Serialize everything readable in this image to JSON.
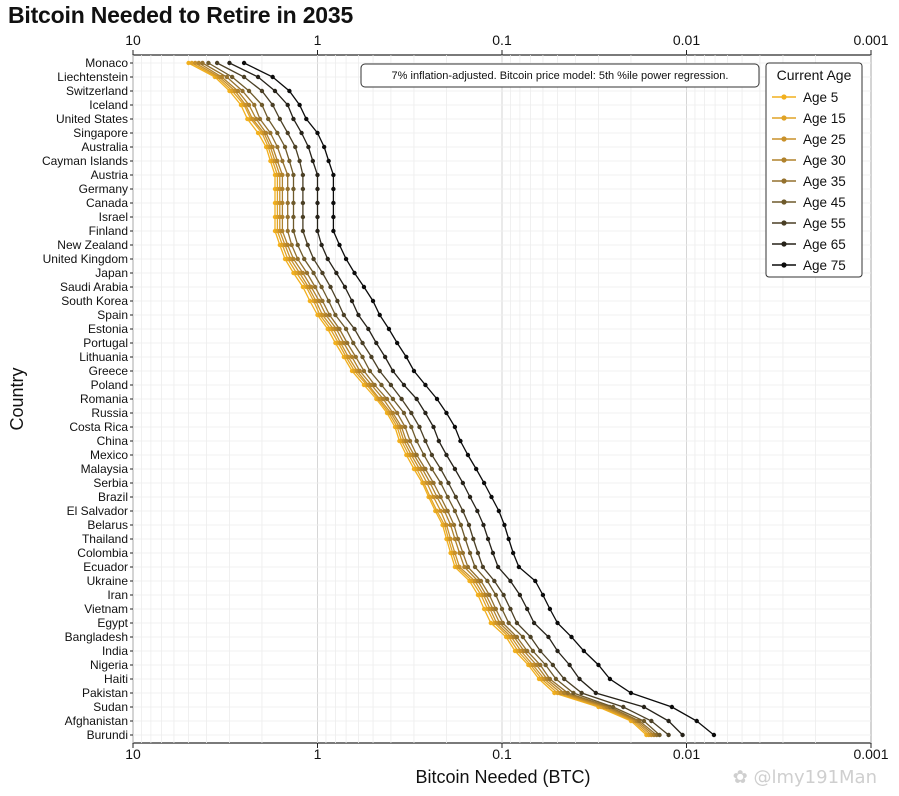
{
  "chart_data": {
    "type": "line",
    "title": "Bitcoin Needed to Retire in 2035",
    "xlabel": "Bitcoin Needed (BTC)",
    "ylabel": "Country",
    "x_scale": "log",
    "x_reversed": true,
    "xlim": [
      10,
      0.001
    ],
    "x_ticks": [
      10,
      1,
      0.1,
      0.01,
      0.001
    ],
    "x_tick_labels": [
      "10",
      "1",
      "0.1",
      "0.01",
      "0.001"
    ],
    "grid": true,
    "legend_title": "Current Age",
    "legend_position": "top-right",
    "annotation": "7% inflation-adjusted. Bitcoin price model: 5th %ile power regression.",
    "categories": [
      "Monaco",
      "Liechtenstein",
      "Switzerland",
      "Iceland",
      "United States",
      "Singapore",
      "Australia",
      "Cayman Islands",
      "Austria",
      "Germany",
      "Canada",
      "Israel",
      "Finland",
      "New Zealand",
      "United Kingdom",
      "Japan",
      "Saudi Arabia",
      "South Korea",
      "Spain",
      "Estonia",
      "Portugal",
      "Lithuania",
      "Greece",
      "Poland",
      "Romania",
      "Russia",
      "Costa Rica",
      "China",
      "Mexico",
      "Malaysia",
      "Serbia",
      "Brazil",
      "El Salvador",
      "Belarus",
      "Thailand",
      "Colombia",
      "Ecuador",
      "Ukraine",
      "Iran",
      "Vietnam",
      "Egypt",
      "Bangladesh",
      "India",
      "Nigeria",
      "Haiti",
      "Pakistan",
      "Sudan",
      "Afghanistan",
      "Burundi"
    ],
    "series": [
      {
        "name": "Age 5",
        "color": "#f2b01e",
        "values": [
          5.0,
          3.6,
          3.0,
          2.6,
          2.4,
          2.1,
          1.9,
          1.8,
          1.7,
          1.7,
          1.7,
          1.7,
          1.7,
          1.6,
          1.5,
          1.35,
          1.2,
          1.1,
          1.0,
          0.88,
          0.8,
          0.72,
          0.65,
          0.56,
          0.48,
          0.42,
          0.38,
          0.36,
          0.33,
          0.3,
          0.27,
          0.25,
          0.23,
          0.21,
          0.2,
          0.19,
          0.18,
          0.15,
          0.135,
          0.125,
          0.115,
          0.095,
          0.085,
          0.072,
          0.063,
          0.052,
          0.03,
          0.02,
          0.0165
        ]
      },
      {
        "name": "Age 15",
        "color": "#e0a326",
        "values": [
          4.8,
          3.5,
          2.9,
          2.5,
          2.3,
          2.0,
          1.85,
          1.75,
          1.65,
          1.65,
          1.65,
          1.65,
          1.65,
          1.55,
          1.45,
          1.3,
          1.15,
          1.05,
          0.97,
          0.85,
          0.77,
          0.7,
          0.63,
          0.54,
          0.47,
          0.41,
          0.37,
          0.35,
          0.32,
          0.29,
          0.265,
          0.245,
          0.225,
          0.205,
          0.195,
          0.185,
          0.175,
          0.145,
          0.13,
          0.12,
          0.11,
          0.092,
          0.082,
          0.07,
          0.061,
          0.05,
          0.029,
          0.0195,
          0.016
        ]
      },
      {
        "name": "Age 25",
        "color": "#c9912a",
        "values": [
          4.6,
          3.4,
          2.8,
          2.45,
          2.25,
          1.95,
          1.8,
          1.7,
          1.6,
          1.6,
          1.6,
          1.6,
          1.6,
          1.5,
          1.4,
          1.25,
          1.12,
          1.02,
          0.94,
          0.82,
          0.75,
          0.68,
          0.61,
          0.53,
          0.46,
          0.4,
          0.36,
          0.34,
          0.31,
          0.28,
          0.255,
          0.235,
          0.215,
          0.2,
          0.19,
          0.18,
          0.17,
          0.14,
          0.126,
          0.116,
          0.107,
          0.089,
          0.079,
          0.068,
          0.059,
          0.048,
          0.028,
          0.019,
          0.0155
        ]
      },
      {
        "name": "Age 30",
        "color": "#b0822c",
        "values": [
          4.4,
          3.3,
          2.7,
          2.35,
          2.15,
          1.9,
          1.75,
          1.65,
          1.55,
          1.55,
          1.55,
          1.55,
          1.55,
          1.45,
          1.35,
          1.2,
          1.08,
          0.98,
          0.9,
          0.79,
          0.72,
          0.65,
          0.59,
          0.51,
          0.44,
          0.39,
          0.35,
          0.33,
          0.3,
          0.27,
          0.245,
          0.225,
          0.205,
          0.19,
          0.18,
          0.17,
          0.16,
          0.135,
          0.122,
          0.112,
          0.103,
          0.086,
          0.076,
          0.065,
          0.057,
          0.046,
          0.027,
          0.0185,
          0.015
        ]
      },
      {
        "name": "Age 35",
        "color": "#94712e",
        "values": [
          4.2,
          3.1,
          2.55,
          2.2,
          2.05,
          1.8,
          1.65,
          1.55,
          1.45,
          1.45,
          1.45,
          1.45,
          1.45,
          1.38,
          1.28,
          1.14,
          1.03,
          0.94,
          0.86,
          0.76,
          0.69,
          0.62,
          0.56,
          0.49,
          0.42,
          0.37,
          0.335,
          0.315,
          0.29,
          0.26,
          0.235,
          0.215,
          0.197,
          0.182,
          0.173,
          0.163,
          0.153,
          0.13,
          0.117,
          0.108,
          0.099,
          0.083,
          0.073,
          0.062,
          0.055,
          0.044,
          0.026,
          0.018,
          0.0145
        ]
      },
      {
        "name": "Age 45",
        "color": "#6e5a2b",
        "values": [
          3.9,
          2.9,
          2.35,
          2.0,
          1.85,
          1.65,
          1.5,
          1.42,
          1.35,
          1.35,
          1.35,
          1.35,
          1.35,
          1.28,
          1.18,
          1.05,
          0.95,
          0.87,
          0.8,
          0.7,
          0.64,
          0.57,
          0.52,
          0.45,
          0.39,
          0.34,
          0.31,
          0.29,
          0.265,
          0.24,
          0.215,
          0.197,
          0.18,
          0.167,
          0.158,
          0.149,
          0.14,
          0.12,
          0.108,
          0.1,
          0.092,
          0.077,
          0.068,
          0.058,
          0.051,
          0.041,
          0.025,
          0.017,
          0.014
        ]
      },
      {
        "name": "Age 55",
        "color": "#4a3f25",
        "values": [
          3.5,
          2.5,
          2.0,
          1.75,
          1.6,
          1.45,
          1.32,
          1.25,
          1.2,
          1.2,
          1.2,
          1.2,
          1.2,
          1.13,
          1.05,
          0.94,
          0.85,
          0.78,
          0.72,
          0.63,
          0.57,
          0.51,
          0.46,
          0.4,
          0.35,
          0.31,
          0.28,
          0.26,
          0.24,
          0.215,
          0.195,
          0.178,
          0.163,
          0.151,
          0.143,
          0.135,
          0.127,
          0.11,
          0.098,
          0.09,
          0.083,
          0.07,
          0.062,
          0.053,
          0.046,
          0.037,
          0.022,
          0.0155,
          0.0125
        ]
      },
      {
        "name": "Age 65",
        "color": "#262219",
        "values": [
          3.0,
          2.1,
          1.7,
          1.45,
          1.35,
          1.22,
          1.12,
          1.06,
          1.0,
          1.0,
          1.0,
          1.0,
          1.0,
          0.95,
          0.88,
          0.79,
          0.71,
          0.65,
          0.6,
          0.53,
          0.48,
          0.43,
          0.39,
          0.34,
          0.29,
          0.26,
          0.235,
          0.22,
          0.2,
          0.18,
          0.163,
          0.149,
          0.136,
          0.126,
          0.119,
          0.112,
          0.105,
          0.09,
          0.08,
          0.073,
          0.067,
          0.056,
          0.05,
          0.043,
          0.038,
          0.031,
          0.017,
          0.0125,
          0.0105
        ]
      },
      {
        "name": "Age 75",
        "color": "#0b0b0b",
        "values": [
          2.5,
          1.75,
          1.42,
          1.25,
          1.15,
          1.0,
          0.92,
          0.87,
          0.82,
          0.82,
          0.82,
          0.82,
          0.82,
          0.76,
          0.7,
          0.63,
          0.56,
          0.5,
          0.46,
          0.41,
          0.37,
          0.33,
          0.3,
          0.26,
          0.225,
          0.2,
          0.18,
          0.168,
          0.153,
          0.138,
          0.125,
          0.114,
          0.104,
          0.097,
          0.092,
          0.087,
          0.081,
          0.066,
          0.06,
          0.055,
          0.05,
          0.042,
          0.036,
          0.03,
          0.026,
          0.02,
          0.012,
          0.0088,
          0.0071
        ]
      }
    ]
  }
}
